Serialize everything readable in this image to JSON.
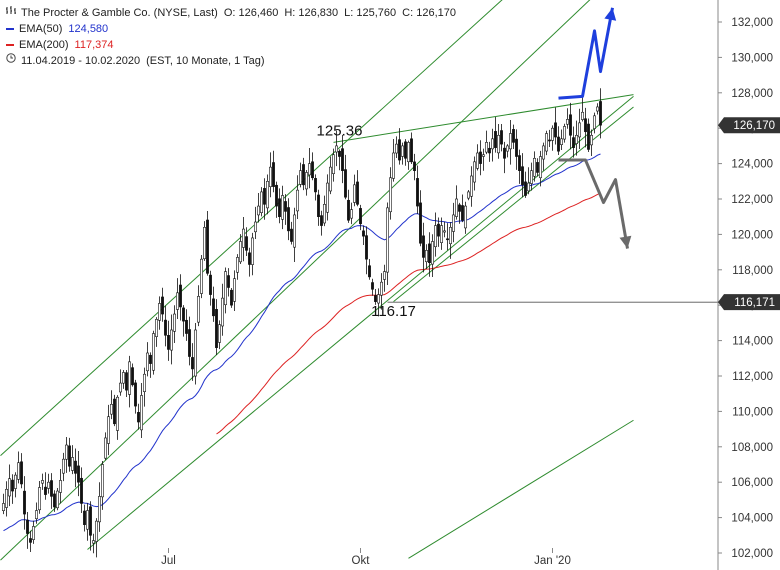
{
  "legend": {
    "title": "The Procter & Gamble Co. (NYSE, Last)",
    "ohlc": {
      "o_label": "O:",
      "o": "126,460",
      "h_label": "H:",
      "h": "126,830",
      "l_label": "L:",
      "l": "125,760",
      "c_label": "C:",
      "c": "126,170"
    },
    "ema50": {
      "label": "EMA(50)",
      "value": "124,580",
      "color": "#2233cc"
    },
    "ema200": {
      "label": "EMA(200)",
      "value": "117,374",
      "color": "#dd2222"
    },
    "range": "11.04.2019 - 10.02.2020",
    "settings": "(EST, 10 Monate, 1 Tag)"
  },
  "chart_data": {
    "type": "candlestick",
    "ylim": [
      101.5,
      133.2
    ],
    "y_ticks": [
      102000,
      104000,
      106000,
      108000,
      110000,
      112000,
      114000,
      116000,
      118000,
      120000,
      122000,
      124000,
      126000,
      128000,
      130000,
      132000
    ],
    "y_tick_labels": [
      "102,000",
      "104,000",
      "106,000",
      "108,000",
      "110,000",
      "112,000",
      "114,000",
      "116,000",
      "118,000",
      "120,000",
      "122,000",
      "124,000",
      "126,000",
      "128,000",
      "130,000",
      "132,000"
    ],
    "x_labels": [
      {
        "label": "Jul",
        "bar": 55
      },
      {
        "label": "Okt",
        "bar": 119
      },
      {
        "label": "Jan '20",
        "bar": 183
      }
    ],
    "bar_count": 210,
    "last_price": {
      "value": 126.17,
      "label": "126,170"
    },
    "support_price": {
      "value": 116.171,
      "label": "116,171"
    },
    "annotations": [
      {
        "text": "125.36",
        "bar": 112,
        "value": 125.36
      },
      {
        "text": "116.17",
        "bar": 130,
        "value": 116.17
      }
    ],
    "closes": [
      104.8,
      105.6,
      106.2,
      105.5,
      106.4,
      107.1,
      105.9,
      104.2,
      103.1,
      102.6,
      103.5,
      104.4,
      105.7,
      106.1,
      105.3,
      106.0,
      105.2,
      104.6,
      105.5,
      106.1,
      107.3,
      108.1,
      106.9,
      107.4,
      106.5,
      106.0,
      104.8,
      103.6,
      104.4,
      103.0,
      102.7,
      103.8,
      105.2,
      107.0,
      108.5,
      109.7,
      110.4,
      109.3,
      110.8,
      111.6,
      112.2,
      111.2,
      112.8,
      111.5,
      110.3,
      109.4,
      110.9,
      112.1,
      113.3,
      112.7,
      114.4,
      115.2,
      116.1,
      115.5,
      114.3,
      113.5,
      114.6,
      115.5,
      116.7,
      115.9,
      115.1,
      114.4,
      113.1,
      112.4,
      114.6,
      116.5,
      118.6,
      120.4,
      117.8,
      116.6,
      115.4,
      113.6,
      114.9,
      116.4,
      117.9,
      117.0,
      116.0,
      117.5,
      118.7,
      119.6,
      120.3,
      119.1,
      118.3,
      119.8,
      120.7,
      121.6,
      122.4,
      121.7,
      123.0,
      123.8,
      122.7,
      121.6,
      121.0,
      122.2,
      121.3,
      120.2,
      119.6,
      121.1,
      122.5,
      123.6,
      122.8,
      123.5,
      124.0,
      123.2,
      122.4,
      121.0,
      120.5,
      121.7,
      122.9,
      123.8,
      124.5,
      125.0,
      124.4,
      123.6,
      122.1,
      120.8,
      121.4,
      122.8,
      121.7,
      120.6,
      119.9,
      118.6,
      117.6,
      116.9,
      116.2,
      116.6,
      117.3,
      117.9,
      121.5,
      123.2,
      124.6,
      125.1,
      124.2,
      125.0,
      124.3,
      125.2,
      124.1,
      123.6,
      121.6,
      119.5,
      118.7,
      119.1,
      118.4,
      119.6,
      120.5,
      119.9,
      120.5,
      120.2,
      119.7,
      120.4,
      121.1,
      122.0,
      121.3,
      120.8,
      121.6,
      122.4,
      123.3,
      124.1,
      124.6,
      124.0,
      124.5,
      125.2,
      124.6,
      125.4,
      124.9,
      125.6,
      125.1,
      124.3,
      125.0,
      125.7,
      125.2,
      124.4,
      123.6,
      122.8,
      122.2,
      122.9,
      123.6,
      124.3,
      123.5,
      124.4,
      125.0,
      125.7,
      125.3,
      126.0,
      125.5,
      124.7,
      125.4,
      126.1,
      126.5,
      125.6,
      124.9,
      125.6,
      126.3,
      126.9,
      125.8,
      124.8,
      125.6,
      126.7,
      127.2,
      126.17
    ],
    "ema50_start": 103.2,
    "ema200_start": 101.0,
    "trendlines": [
      {
        "name": "channel-upper-line",
        "color": "#2e8b2e",
        "points": [
          [
            -1,
            107.5
          ],
          [
            210,
            140.0
          ]
        ]
      },
      {
        "name": "channel-mid-line",
        "color": "#2e8b2e",
        "points": [
          [
            -1,
            101.6
          ],
          [
            210,
            135.6
          ]
        ]
      },
      {
        "name": "channel-lower-line",
        "color": "#2e8b2e",
        "points": [
          [
            28,
            102.2
          ],
          [
            210,
            127.8
          ]
        ]
      },
      {
        "name": "wedge-upper-line",
        "color": "#2e8b2e",
        "points": [
          [
            110,
            125.2
          ],
          [
            210,
            127.9
          ]
        ]
      },
      {
        "name": "wedge-lower-line",
        "color": "#2e8b2e",
        "points": [
          [
            130,
            116.2
          ],
          [
            210,
            127.2
          ]
        ]
      },
      {
        "name": "far-lower-line",
        "color": "#2e8b2e",
        "points": [
          [
            135,
            101.7
          ],
          [
            210,
            109.5
          ]
        ]
      }
    ],
    "scenario_up": [
      [
        185,
        127.7
      ],
      [
        193,
        127.8
      ],
      [
        197,
        131.5
      ],
      [
        199,
        129.2
      ],
      [
        203,
        132.8
      ],
      [
        201,
        132.3
      ]
    ],
    "scenario_down": [
      [
        185,
        124.2
      ],
      [
        194,
        124.2
      ],
      [
        200,
        121.8
      ],
      [
        204,
        123.1
      ],
      [
        208,
        119.2
      ],
      [
        206,
        119.6
      ]
    ]
  }
}
